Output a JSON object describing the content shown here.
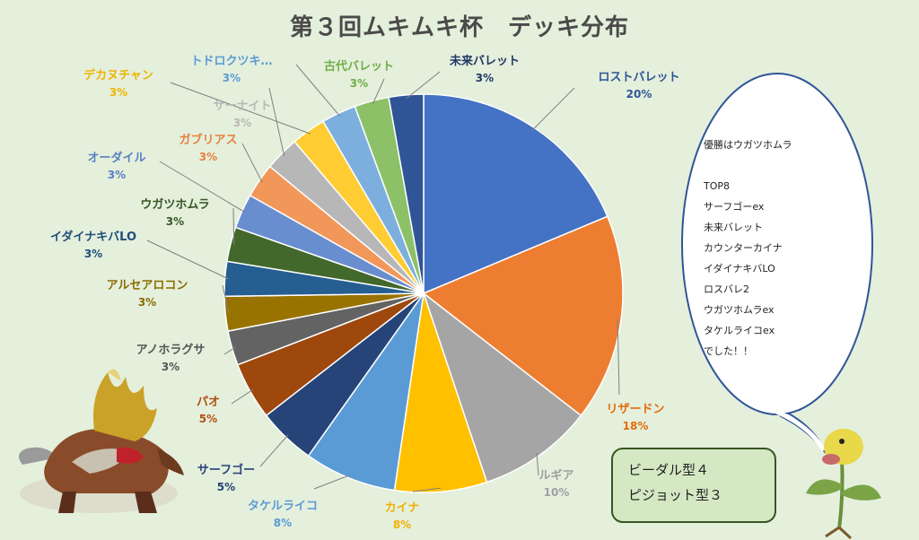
{
  "title": "第３回ムキムキ杯　デッキ分布",
  "chart_data": {
    "type": "pie",
    "title": "第３回ムキムキ杯　デッキ分布",
    "slices": [
      {
        "name": "ロストバレット",
        "pct_label": "20%",
        "value": 20,
        "color": "#4472c4",
        "label_color": "#2f5597"
      },
      {
        "name": "リザードン",
        "pct_label": "18%",
        "value": 18,
        "color": "#ed7d31",
        "label_color": "#e46c0a"
      },
      {
        "name": "ルギア",
        "pct_label": "10%",
        "value": 10,
        "color": "#a5a5a5",
        "label_color": "#a0a0a0"
      },
      {
        "name": "カイナ",
        "pct_label": "8%",
        "value": 8,
        "color": "#ffc000",
        "label_color": "#f0b000"
      },
      {
        "name": "タケルライコ",
        "pct_label": "8%",
        "value": 8,
        "color": "#5b9bd5",
        "label_color": "#5b9bd5"
      },
      {
        "name": "サーフゴー",
        "pct_label": "5%",
        "value": 5,
        "color": "#264478",
        "label_color": "#264478"
      },
      {
        "name": "パオ",
        "pct_label": "5%",
        "value": 5,
        "color": "#9e480e",
        "label_color": "#b05010"
      },
      {
        "name": "アノホラグサ",
        "pct_label": "3%",
        "value": 3,
        "color": "#636363",
        "label_color": "#555555"
      },
      {
        "name": "アルセアロコン",
        "pct_label": "3%",
        "value": 3,
        "color": "#997300",
        "label_color": "#8a6d00"
      },
      {
        "name": "イダイナキバLO",
        "pct_label": "3%",
        "value": 3,
        "color": "#255e91",
        "label_color": "#1f4e79"
      },
      {
        "name": "ウガツホムラ",
        "pct_label": "3%",
        "value": 3,
        "color": "#43682b",
        "label_color": "#375623"
      },
      {
        "name": "オーダイル",
        "pct_label": "3%",
        "value": 3,
        "color": "#698ed0",
        "label_color": "#5b7fc0"
      },
      {
        "name": "ガブリアス",
        "pct_label": "3%",
        "value": 3,
        "color": "#f1975a",
        "label_color": "#e8803a"
      },
      {
        "name": "サーナイト",
        "pct_label": "3%",
        "value": 3,
        "color": "#b7b7b7",
        "label_color": "#b7b7b7"
      },
      {
        "name": "デカヌチャン",
        "pct_label": "3%",
        "value": 3,
        "color": "#ffcd33",
        "label_color": "#f0b400"
      },
      {
        "name": "トドロクツキ…",
        "pct_label": "3%",
        "value": 3,
        "color": "#7cafdd",
        "label_color": "#5b9bd5"
      },
      {
        "name": "古代バレット",
        "pct_label": "3%",
        "value": 3,
        "color": "#8cc168",
        "label_color": "#70ad47"
      },
      {
        "name": "未来バレット",
        "pct_label": "3%",
        "value": 3,
        "color": "#2f5597",
        "label_color": "#1f3864"
      }
    ]
  },
  "speech_bubble": {
    "lines": [
      "優勝はウガツホムラ",
      "",
      "TOP8",
      "サーフゴーex",
      "未来バレット",
      "カウンターカイナ",
      "イダイナキバLO",
      "ロスバレ2",
      "ウガツホムラex",
      "タケルライコex",
      "でした！！"
    ]
  },
  "summary_box": {
    "lines": [
      "ビーダル型４",
      "ピジョット型３"
    ]
  },
  "colors": {
    "background": "#e4efdc",
    "bubble_fill": "#ffffff",
    "bubble_stroke": "#2f5597",
    "box_fill": "#d5e8c4",
    "box_stroke": "#375623"
  },
  "decorations": [
    "entei-illustration",
    "bellsprout-illustration"
  ]
}
